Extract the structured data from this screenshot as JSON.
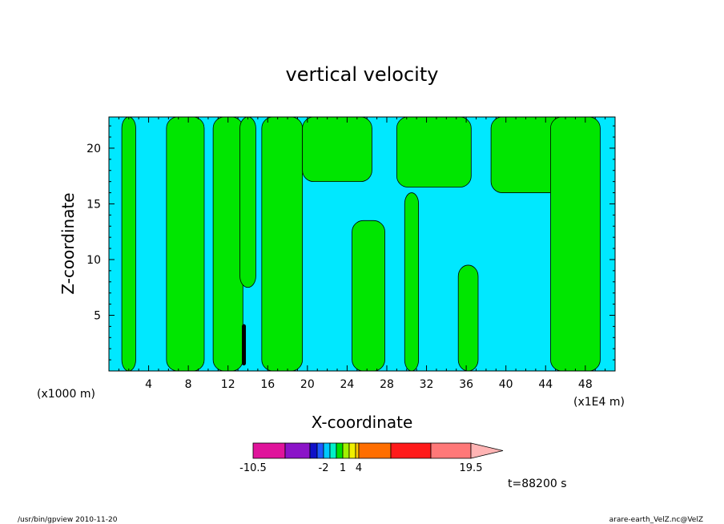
{
  "chart_data": {
    "type": "heatmap",
    "title": "vertical velocity",
    "xlabel": "X-coordinate",
    "ylabel": "Z-coordinate",
    "x_unit_left": "(x1000 m)",
    "x_unit_right": "(x1E4 m)",
    "x_ticks": [
      4,
      8,
      12,
      16,
      20,
      24,
      28,
      32,
      36,
      40,
      44,
      48
    ],
    "y_ticks": [
      5,
      10,
      15,
      20
    ],
    "xlim": [
      0,
      51
    ],
    "ylim": [
      0,
      22.8
    ],
    "colorbar": {
      "tick_labels": [
        "-10.5",
        "-2",
        "1",
        "4",
        "19.5"
      ],
      "tick_values": [
        -10.5,
        -2,
        1,
        4,
        19.5
      ],
      "levels": [
        -10.5,
        -7.5,
        -4.5,
        -3,
        -2,
        -1,
        0,
        1,
        2,
        3,
        4,
        7.5,
        11.5,
        15.5,
        19.5
      ],
      "colors": [
        "#e0149b",
        "#8b14c8",
        "#1010c8",
        "#1e5aff",
        "#00c8ff",
        "#00f0c8",
        "#00e000",
        "#a0f000",
        "#f0f000",
        "#ffc800",
        "#ff6e00",
        "#ff1a1a",
        "#ff7878",
        "#ffb4b4"
      ]
    },
    "field_colors": {
      "updraft": "#00e600",
      "downdraft": "#00e8ff"
    },
    "updraft_regions": [
      {
        "x": [
          1.3,
          2.7
        ],
        "z": [
          0,
          22.8
        ]
      },
      {
        "x": [
          5.8,
          9.6
        ],
        "z": [
          0,
          22.8
        ]
      },
      {
        "x": [
          10.5,
          13.5
        ],
        "z": [
          0,
          22.8
        ]
      },
      {
        "x": [
          13.2,
          14.8
        ],
        "z": [
          7.5,
          22.8
        ]
      },
      {
        "x": [
          15.4,
          19.5
        ],
        "z": [
          0,
          22.8
        ]
      },
      {
        "x": [
          19.5,
          26.5
        ],
        "z": [
          17,
          22.8
        ]
      },
      {
        "x": [
          24.5,
          27.8
        ],
        "z": [
          0,
          13.5
        ]
      },
      {
        "x": [
          29.8,
          31.2
        ],
        "z": [
          0,
          16
        ]
      },
      {
        "x": [
          29,
          36.5
        ],
        "z": [
          16.5,
          22.8
        ]
      },
      {
        "x": [
          35.2,
          37.2
        ],
        "z": [
          0,
          9.5
        ]
      },
      {
        "x": [
          38.5,
          46.5
        ],
        "z": [
          16,
          22.8
        ]
      },
      {
        "x": [
          44.5,
          49.5
        ],
        "z": [
          0,
          22.8
        ]
      }
    ],
    "narrow_downdraft_core": {
      "x": 13.6,
      "z": [
        0.5,
        4.2
      ]
    },
    "time_label": "t=88200 s"
  },
  "footer": {
    "left": "/usr/bin/gpview   2010-11-20",
    "right": "arare-earth_VelZ.nc@VelZ"
  }
}
